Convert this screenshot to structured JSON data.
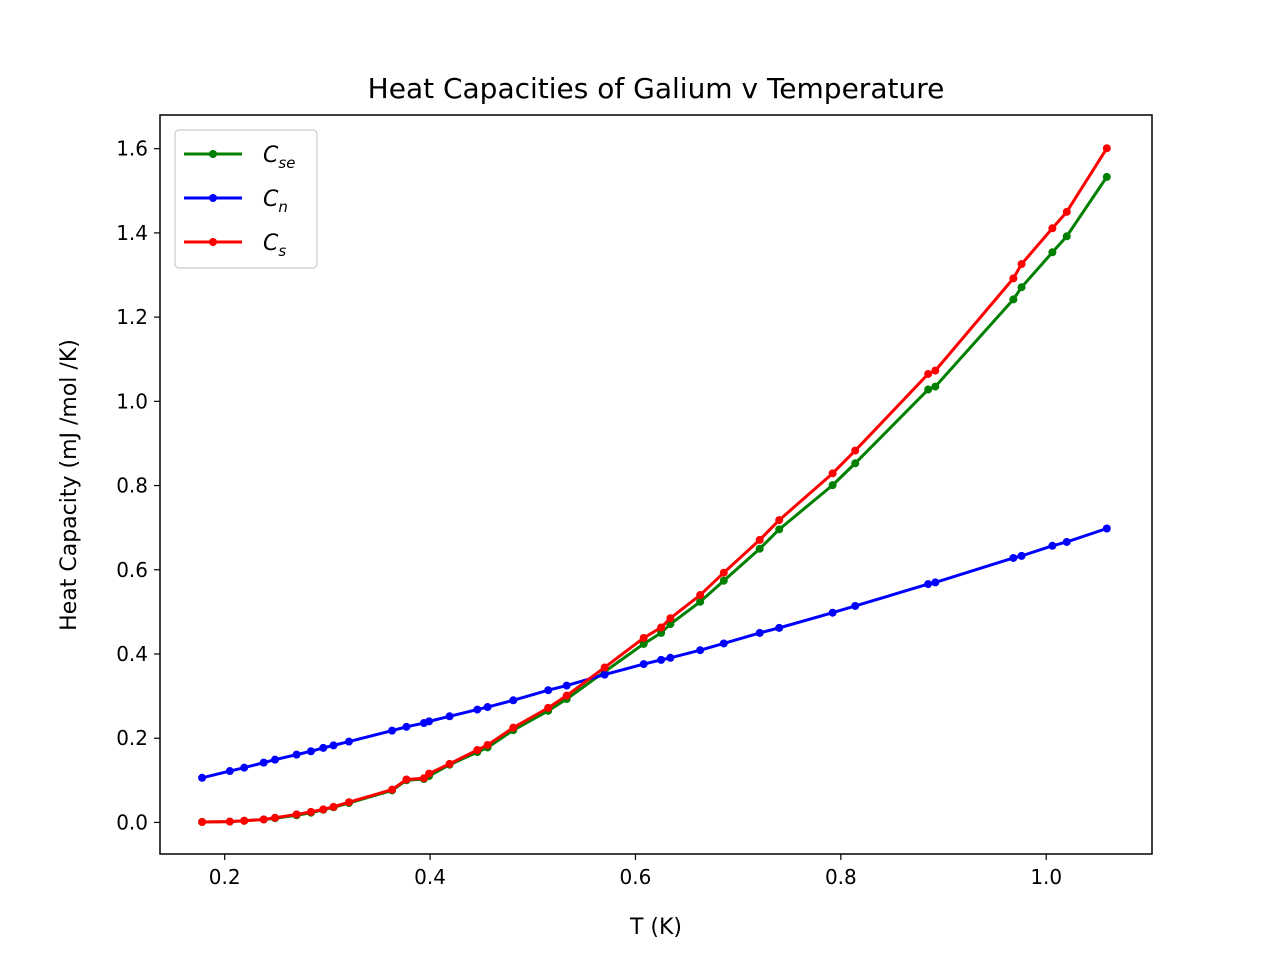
{
  "chart_data": {
    "type": "line",
    "title": "Heat Capacities of Galium v Temperature",
    "xlabel": "T (K)",
    "ylabel": "Heat Capacity (mJ /mol /K)",
    "xlim": [
      0.137,
      1.103
    ],
    "ylim": [
      -0.075,
      1.68
    ],
    "xticks": [
      0.2,
      0.4,
      0.6,
      0.8,
      1.0
    ],
    "xtick_labels": [
      "0.2",
      "0.4",
      "0.6",
      "0.8",
      "1.0"
    ],
    "yticks": [
      0.0,
      0.2,
      0.4,
      0.6,
      0.8,
      1.0,
      1.2,
      1.4,
      1.6
    ],
    "ytick_labels": [
      "0.0",
      "0.2",
      "0.4",
      "0.6",
      "0.8",
      "1.0",
      "1.2",
      "1.4",
      "1.6"
    ],
    "grid": false,
    "legend_position": "upper-left",
    "x": [
      0.178,
      0.205,
      0.219,
      0.238,
      0.249,
      0.27,
      0.284,
      0.296,
      0.306,
      0.321,
      0.363,
      0.377,
      0.394,
      0.399,
      0.419,
      0.446,
      0.456,
      0.481,
      0.515,
      0.533,
      0.57,
      0.608,
      0.625,
      0.634,
      0.663,
      0.686,
      0.721,
      0.74,
      0.792,
      0.814,
      0.885,
      0.892,
      0.968,
      0.976,
      1.006,
      1.02,
      1.059
    ],
    "series": [
      {
        "name": "C_se",
        "color": "#008000",
        "values": [
          0.001,
          0.002,
          0.004,
          0.007,
          0.01,
          0.017,
          0.023,
          0.03,
          0.036,
          0.046,
          0.076,
          0.1,
          0.103,
          0.11,
          0.137,
          0.167,
          0.178,
          0.219,
          0.265,
          0.293,
          0.358,
          0.424,
          0.45,
          0.471,
          0.524,
          0.574,
          0.65,
          0.696,
          0.801,
          0.853,
          1.028,
          1.035,
          1.242,
          1.271,
          1.354,
          1.392,
          1.533
        ]
      },
      {
        "name": "C_n",
        "color": "#0000ff",
        "values": [
          0.106,
          0.122,
          0.13,
          0.142,
          0.149,
          0.161,
          0.169,
          0.177,
          0.183,
          0.192,
          0.218,
          0.227,
          0.236,
          0.24,
          0.252,
          0.268,
          0.274,
          0.29,
          0.314,
          0.325,
          0.351,
          0.376,
          0.386,
          0.391,
          0.409,
          0.425,
          0.45,
          0.462,
          0.498,
          0.514,
          0.566,
          0.57,
          0.628,
          0.633,
          0.657,
          0.666,
          0.698
        ]
      },
      {
        "name": "C_s",
        "color": "#ff0000",
        "values": [
          0.001,
          0.002,
          0.004,
          0.007,
          0.011,
          0.019,
          0.025,
          0.031,
          0.037,
          0.048,
          0.078,
          0.102,
          0.105,
          0.116,
          0.139,
          0.172,
          0.184,
          0.225,
          0.272,
          0.301,
          0.368,
          0.438,
          0.463,
          0.485,
          0.54,
          0.593,
          0.671,
          0.718,
          0.829,
          0.883,
          1.065,
          1.073,
          1.292,
          1.326,
          1.411,
          1.45,
          1.601
        ]
      }
    ]
  },
  "legend": {
    "entries": [
      {
        "base": "C",
        "sub": "se"
      },
      {
        "base": "C",
        "sub": "n"
      },
      {
        "base": "C",
        "sub": "s"
      }
    ]
  }
}
